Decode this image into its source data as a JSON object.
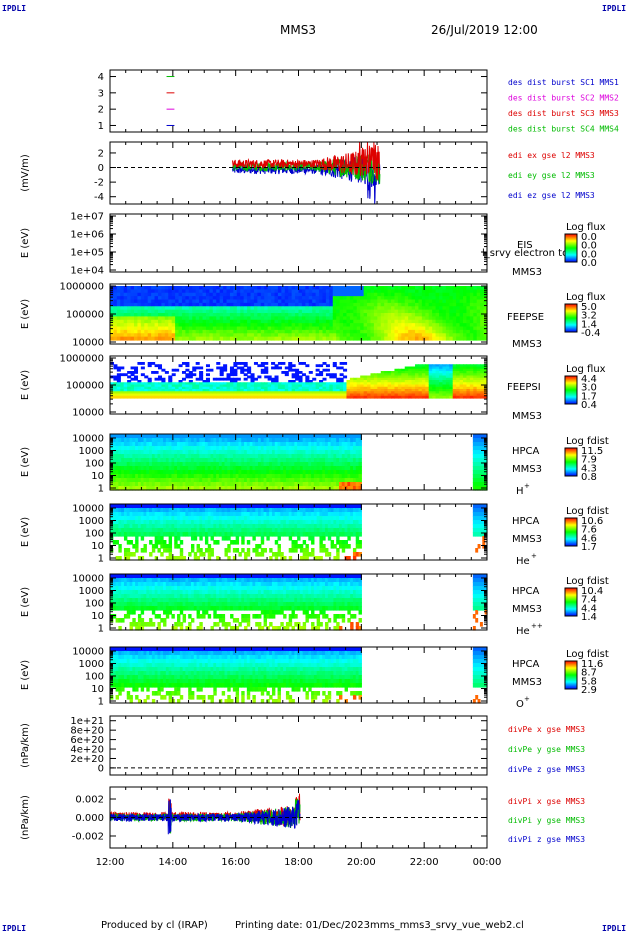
{
  "header": {
    "corner_label": "IPDLI",
    "mission": "MMS3",
    "datetime": "26/Jul/2019 12:00"
  },
  "footer": {
    "produced_by": "Produced by cl (IRAP)",
    "printing_date": "Printing date: 01/Dec/2023",
    "script_name": "mms_mms3_srvy_vue_web2.cl"
  },
  "colors": {
    "red": "#dd0000",
    "green": "#00bb00",
    "blue": "#0000cc",
    "magenta": "#dd00dd"
  },
  "chart_data": [
    {
      "id": "burst",
      "type": "line",
      "y_ticks": [
        "4",
        "3",
        "2",
        "1"
      ],
      "ylim": [
        0.6,
        4.4
      ],
      "series": [
        {
          "name": "des dist burst SC1 MMS1",
          "color": "#0000cc",
          "y": 1
        },
        {
          "name": "des dist burst SC2 MMS2",
          "color": "#dd00dd",
          "y": 2
        },
        {
          "name": "des dist burst SC3 MMS3",
          "color": "#dd0000",
          "y": 3
        },
        {
          "name": "des dist burst SC4 MMS4",
          "color": "#00bb00",
          "y": 4
        }
      ]
    },
    {
      "id": "edi",
      "type": "line",
      "ylabel": "(mV/m)",
      "y_ticks": [
        "2",
        "0",
        "-2",
        "-4"
      ],
      "ylim": [
        -5,
        3.5
      ],
      "series": [
        {
          "name": "edi ex gse l2 MMS3",
          "color": "#dd0000"
        },
        {
          "name": "edi ey gse l2 MMS3",
          "color": "#00bb00"
        },
        {
          "name": "edi ez gse l2 MMS3",
          "color": "#0000cc"
        }
      ]
    },
    {
      "id": "eis",
      "type": "heatmap",
      "ylabel": "E (eV)",
      "y_ticks": [
        "1e+07",
        "1e+06",
        "1e+05",
        "1e+04"
      ],
      "instrument": "EIS",
      "overlay_text": "l_srvy electron to",
      "spacecraft": "MMS3",
      "cbar_title": "Log flux",
      "cbar_ticks": [
        "0.0",
        "0.0",
        "0.0",
        "0.0"
      ]
    },
    {
      "id": "feepse",
      "type": "heatmap",
      "ylabel": "E (eV)",
      "y_ticks": [
        "1000000",
        "100000",
        "10000"
      ],
      "instrument": "FEEPSE",
      "spacecraft": "MMS3",
      "cbar_title": "Log flux",
      "cbar_ticks": [
        "5.0",
        "3.2",
        "1.4",
        "-0.4"
      ]
    },
    {
      "id": "feepsi",
      "type": "heatmap",
      "ylabel": "E (eV)",
      "y_ticks": [
        "1000000",
        "100000",
        "10000"
      ],
      "instrument": "FEEPSI",
      "spacecraft": "MMS3",
      "cbar_title": "Log flux",
      "cbar_ticks": [
        "4.4",
        "3.0",
        "1.7",
        "0.4"
      ]
    },
    {
      "id": "hpca_h",
      "type": "heatmap",
      "ylabel": "E (eV)",
      "y_ticks": [
        "10000",
        "1000",
        "100",
        "10",
        "1"
      ],
      "instrument": "HPCA",
      "spacecraft": "MMS3",
      "species": "H",
      "species_sup": "+",
      "cbar_title": "Log fdist",
      "cbar_ticks": [
        "11.5",
        "7.9",
        "4.3",
        "0.8"
      ]
    },
    {
      "id": "hpca_he",
      "type": "heatmap",
      "ylabel": "E (eV)",
      "y_ticks": [
        "10000",
        "1000",
        "100",
        "10",
        "1"
      ],
      "instrument": "HPCA",
      "spacecraft": "MMS3",
      "species": "He",
      "species_sup": "+",
      "cbar_title": "Log fdist",
      "cbar_ticks": [
        "10.6",
        "7.6",
        "4.6",
        "1.7"
      ]
    },
    {
      "id": "hpca_he2",
      "type": "heatmap",
      "ylabel": "E (eV)",
      "y_ticks": [
        "10000",
        "1000",
        "100",
        "10",
        "1"
      ],
      "instrument": "HPCA",
      "spacecraft": "MMS3",
      "species": "He",
      "species_sup": "++",
      "cbar_title": "Log fdist",
      "cbar_ticks": [
        "10.4",
        "7.4",
        "4.4",
        "1.4"
      ]
    },
    {
      "id": "hpca_o",
      "type": "heatmap",
      "ylabel": "E (eV)",
      "y_ticks": [
        "10000",
        "1000",
        "100",
        "10",
        "1"
      ],
      "instrument": "HPCA",
      "spacecraft": "MMS3",
      "species": "O",
      "species_sup": "+",
      "cbar_title": "Log fdist",
      "cbar_ticks": [
        "11.6",
        "8.7",
        "5.8",
        "2.9"
      ]
    },
    {
      "id": "divpe",
      "type": "line",
      "ylabel": "(nPa/km)",
      "y_ticks": [
        "1e+21",
        "8e+20",
        "6e+20",
        "4e+20",
        "2e+20",
        "0"
      ],
      "ylim": [
        -1.5e+20,
        1.1e+21
      ],
      "series": [
        {
          "name": "divPe x gse MMS3",
          "color": "#dd0000"
        },
        {
          "name": "divPe y gse MMS3",
          "color": "#00bb00"
        },
        {
          "name": "divPe z gse MMS3",
          "color": "#0000cc"
        }
      ]
    },
    {
      "id": "divpi",
      "type": "line",
      "ylabel": "(nPa/km)",
      "y_ticks": [
        "0.002",
        "0.000",
        "-0.002"
      ],
      "ylim": [
        -0.0033,
        0.0033
      ],
      "series": [
        {
          "name": "divPi x gse MMS3",
          "color": "#dd0000"
        },
        {
          "name": "divPi y gse MMS3",
          "color": "#00bb00"
        },
        {
          "name": "divPi z gse MMS3",
          "color": "#0000cc"
        }
      ]
    }
  ],
  "x_axis": {
    "tick_labels": [
      "12:00",
      "14:00",
      "16:00",
      "18:00",
      "20:00",
      "22:00",
      "00:00"
    ],
    "range_hours": [
      12,
      24
    ]
  }
}
